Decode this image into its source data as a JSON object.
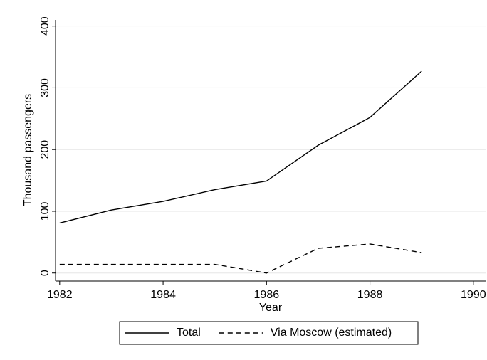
{
  "chart_data": {
    "type": "line",
    "xlabel": "Year",
    "ylabel": "Thousand passengers",
    "x": [
      1982,
      1983,
      1984,
      1985,
      1986,
      1987,
      1988,
      1989
    ],
    "series": [
      {
        "name": "Total",
        "color": "#000000",
        "dash": "solid",
        "values": [
          81,
          102,
          116,
          135,
          149,
          207,
          252,
          327
        ]
      },
      {
        "name": "Via Moscow (estimated)",
        "color": "#000000",
        "dash": "dashed",
        "values": [
          14,
          14,
          14,
          14,
          0,
          40,
          47,
          33
        ]
      }
    ],
    "xlim": [
      1981.92,
      1990.25
    ],
    "xticks": [
      1982,
      1984,
      1986,
      1988,
      1990
    ],
    "ylim": [
      -13,
      410
    ],
    "yticks": [
      0,
      100,
      200,
      300,
      400
    ],
    "grid": true,
    "legend": "bottom"
  }
}
